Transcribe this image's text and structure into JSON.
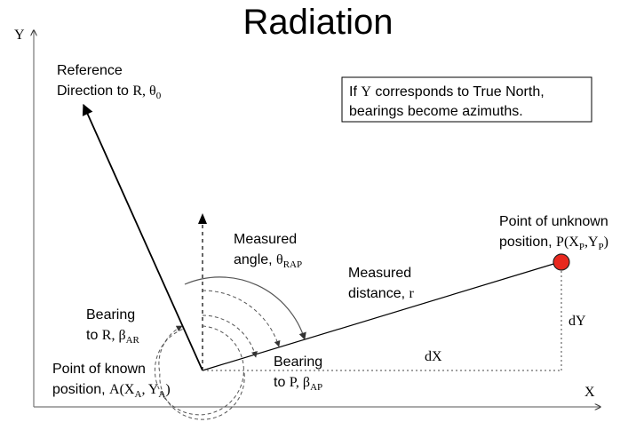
{
  "title": "Radiation",
  "axes": {
    "y_label": "Y",
    "x_label": "X"
  },
  "reference_label": {
    "line1": "Reference",
    "line2_text": "Direction to ",
    "line2_var": "R, θ",
    "line2_sub": "0"
  },
  "note": {
    "line1_text": "If ",
    "line1_var": "Y",
    "line1_rest": " corresponds to True North,",
    "line2": "bearings become azimuths."
  },
  "measured_angle": {
    "line1": "Measured",
    "line2_text": "angle, ",
    "line2_var": "θ",
    "line2_sub": "RAP"
  },
  "measured_distance": {
    "line1": "Measured",
    "line2_text": "distance, ",
    "line2_var": "r"
  },
  "bearing_r": {
    "line1": "Bearing",
    "line2_text": "to ",
    "line2_var": "R, β",
    "line2_sub": "AR"
  },
  "bearing_p": {
    "line1": "Bearing",
    "line2_text": "to ",
    "line2_var": "P, β",
    "line2_sub": "AP"
  },
  "point_known": {
    "line1": "Point of known",
    "line2_text": "position, ",
    "line2_var_a": "A(X",
    "line2_sub_a": "A",
    "line2_var_b": ", Y",
    "line2_sub_b": "A",
    "line2_close": ")"
  },
  "point_unknown": {
    "line1": "Point of unknown",
    "line2_text": "position, ",
    "line2_var_a": "P(X",
    "line2_sub_a": "P",
    "line2_var_b": ",Y",
    "line2_sub_b": "P",
    "line2_close": ")"
  },
  "dx_label": "dX",
  "dy_label": "dY",
  "colors": {
    "point_p_fill": "#e8281e",
    "line": "#000000",
    "arc": "#555555"
  }
}
